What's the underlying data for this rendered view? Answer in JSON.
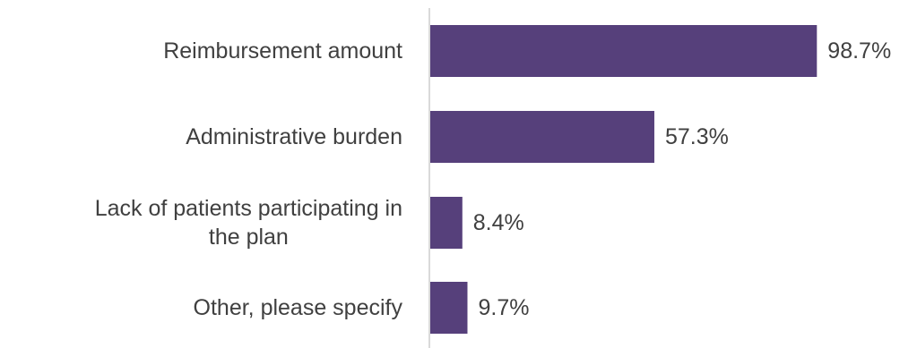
{
  "chart_data": {
    "type": "bar",
    "orientation": "horizontal",
    "categories": [
      [
        "Reimbursement amount"
      ],
      [
        "Administrative burden"
      ],
      [
        "Lack of patients participating in",
        "the plan"
      ],
      [
        "Other, please specify"
      ]
    ],
    "values": [
      98.7,
      57.3,
      8.4,
      9.7
    ],
    "value_labels": [
      "98.7%",
      "57.3%",
      "8.4%",
      "9.7%"
    ],
    "unit": "%",
    "xlim": [
      0,
      100
    ],
    "grid": false,
    "legend": "none",
    "colors": {
      "bar": "#56407B",
      "axis": "#D9D9D9",
      "text": "#404040"
    }
  }
}
